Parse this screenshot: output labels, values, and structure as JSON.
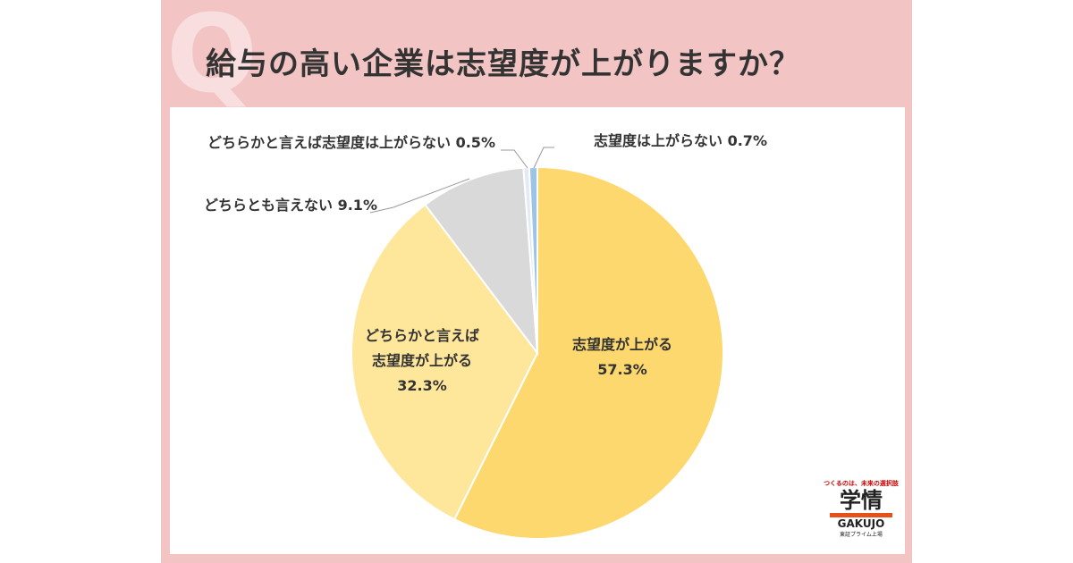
{
  "chart_data": {
    "type": "pie",
    "title": "給与の高い企業は志望度が上がりますか？",
    "watermark": "Q",
    "categories": [
      "志望度が上がる",
      "どちらかと言えば志望度が上がる",
      "どちらとも言えない",
      "どちらかと言えば志望度は上がらない",
      "志望度は上がらない"
    ],
    "values": [
      57.3,
      32.3,
      9.1,
      0.5,
      0.7
    ],
    "value_labels": [
      "57.3%",
      "32.3%",
      "9.1%",
      "0.5%",
      "0.7%"
    ],
    "colors": [
      "#fdd86e",
      "#fee69b",
      "#d9d9d9",
      "#e3eaf4",
      "#9dc3e6"
    ],
    "logo": {
      "tagline": "つくるのは、未来の選択肢",
      "name": "学情",
      "roman": "GAKUJO",
      "note": "東証プライム上場"
    }
  }
}
